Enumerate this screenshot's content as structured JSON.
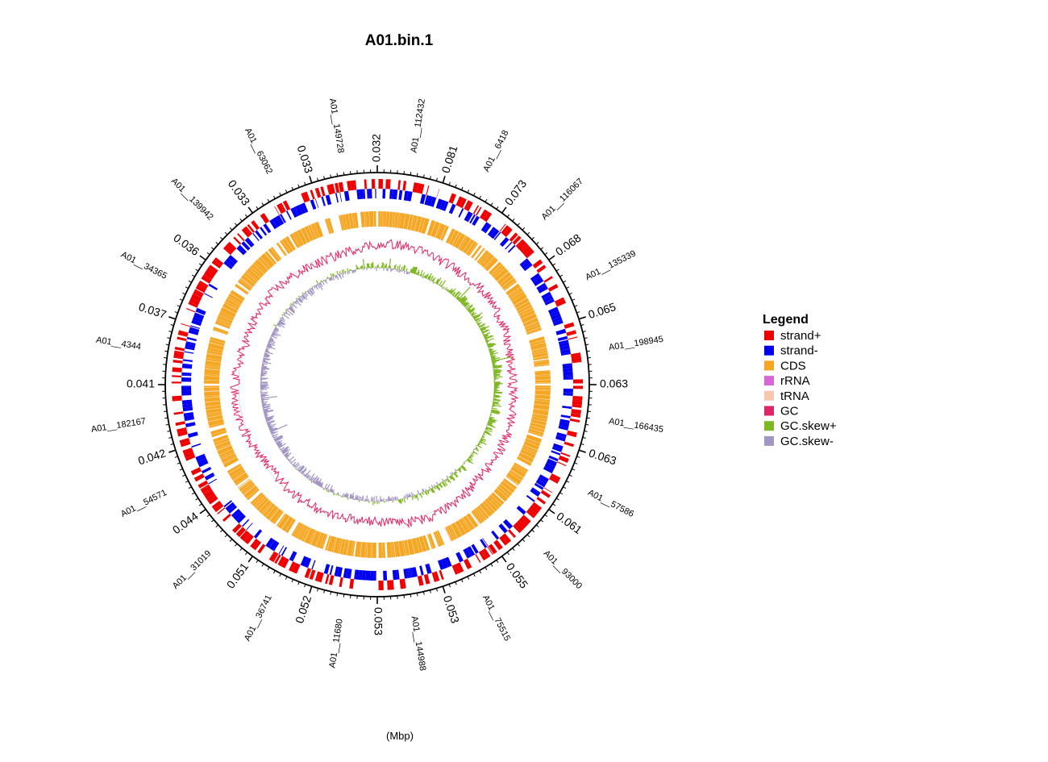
{
  "title": "A01.bin.1",
  "unit_label": "(Mbp)",
  "tick_labels": [
    "0.032",
    "0.081",
    "0.073",
    "0.068",
    "0.065",
    "0.063",
    "0.063",
    "0.061",
    "0.055",
    "0.053",
    "0.053",
    "0.052",
    "0.051",
    "0.044",
    "0.042",
    "0.041",
    "0.037",
    "0.036",
    "0.033",
    "0.033"
  ],
  "contigs": [
    "A01__112432",
    "A01__6418",
    "A01__116067",
    "A01__135339",
    "A01__198945",
    "A01__166435",
    "A01__57586",
    "A01__93000",
    "A01__75515",
    "A01__144988",
    "A01__11680",
    "A01__36741",
    "A01__31019",
    "A01__54571",
    "A01__182167",
    "A01__4344",
    "A01__34365",
    "A01__139942",
    "A01__63062",
    "A01__149728"
  ],
  "legend": {
    "title": "Legend",
    "items": [
      {
        "label": "strand+",
        "color": "#ee0000"
      },
      {
        "label": "strand-",
        "color": "#0000ee"
      },
      {
        "label": "CDS",
        "color": "#f5a623"
      },
      {
        "label": "rRNA",
        "color": "#d966d9"
      },
      {
        "label": "tRNA",
        "color": "#f7c8b0"
      },
      {
        "label": "GC",
        "color": "#e0266a"
      },
      {
        "label": "GC.skew+",
        "color": "#80b823"
      },
      {
        "label": "GC.skew-",
        "color": "#a395c4"
      }
    ]
  }
}
